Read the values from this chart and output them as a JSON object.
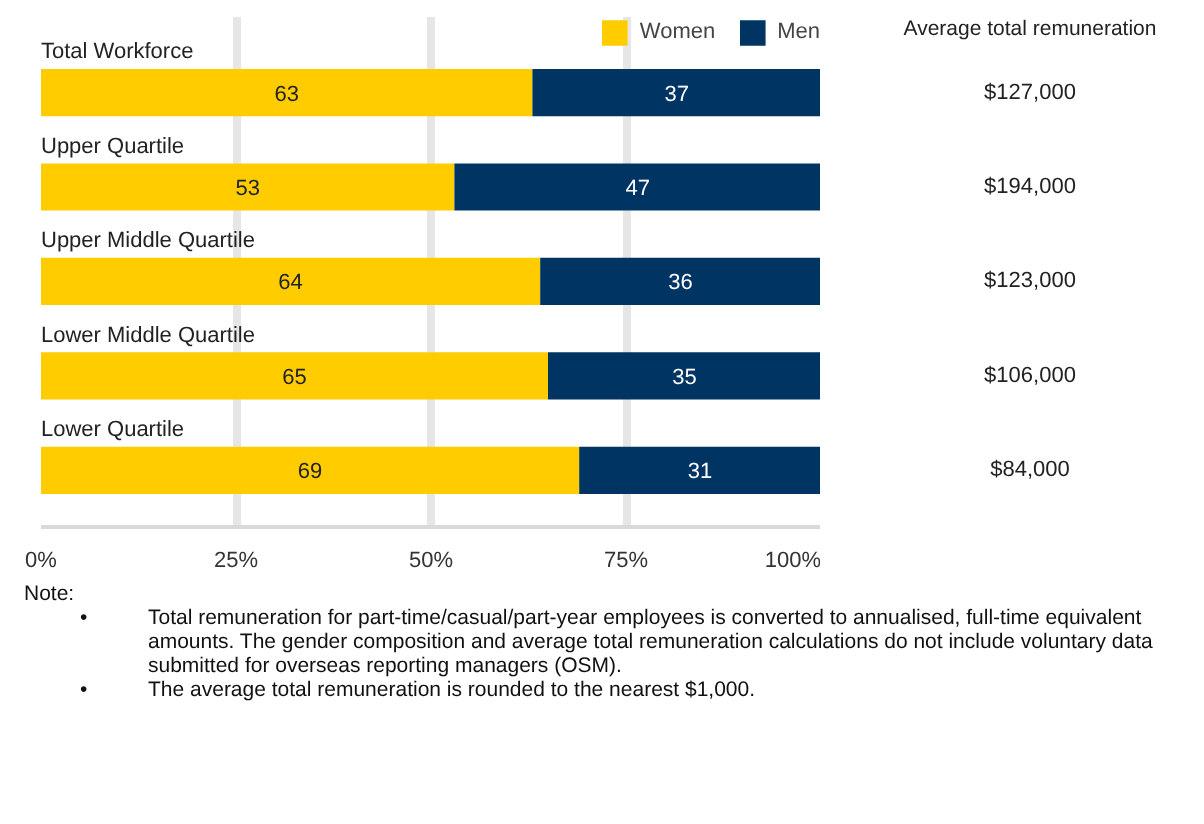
{
  "chart_data": {
    "type": "bar",
    "orientation": "horizontal",
    "stacked": true,
    "categories": [
      "Total Workforce",
      "Upper Quartile",
      "Upper Middle Quartile",
      "Lower Middle Quartile",
      "Lower Quartile"
    ],
    "series": [
      {
        "name": "Women",
        "color": "#ffcc00",
        "values": [
          63,
          53,
          64,
          65,
          69
        ]
      },
      {
        "name": "Men",
        "color": "#003462",
        "values": [
          37,
          47,
          36,
          35,
          31
        ]
      }
    ],
    "data_labels": true,
    "xlim": [
      0,
      100
    ],
    "xticks": [
      {
        "value": 0,
        "label": "0%"
      },
      {
        "value": 25,
        "label": "25%"
      },
      {
        "value": 50,
        "label": "50%"
      },
      {
        "value": 75,
        "label": "75%"
      },
      {
        "value": 100,
        "label": "100%"
      }
    ],
    "grid": "x",
    "legend": "top right",
    "tick_labels": "x",
    "annotations": [
      "Average total remuneration",
      "$127,000",
      "$194,000",
      "$123,000",
      "$106,000",
      "$84,000",
      "Note:",
      "• Total remuneration for part-time/casual/part-year employees is converted to annualised, full-time equivalent amounts. The gender composition and average total remuneration calculations do not include voluntary data submitted for overseas reporting managers (OSM).",
      "• The average total remuneration is rounded to the nearest $1,000."
    ]
  }
}
